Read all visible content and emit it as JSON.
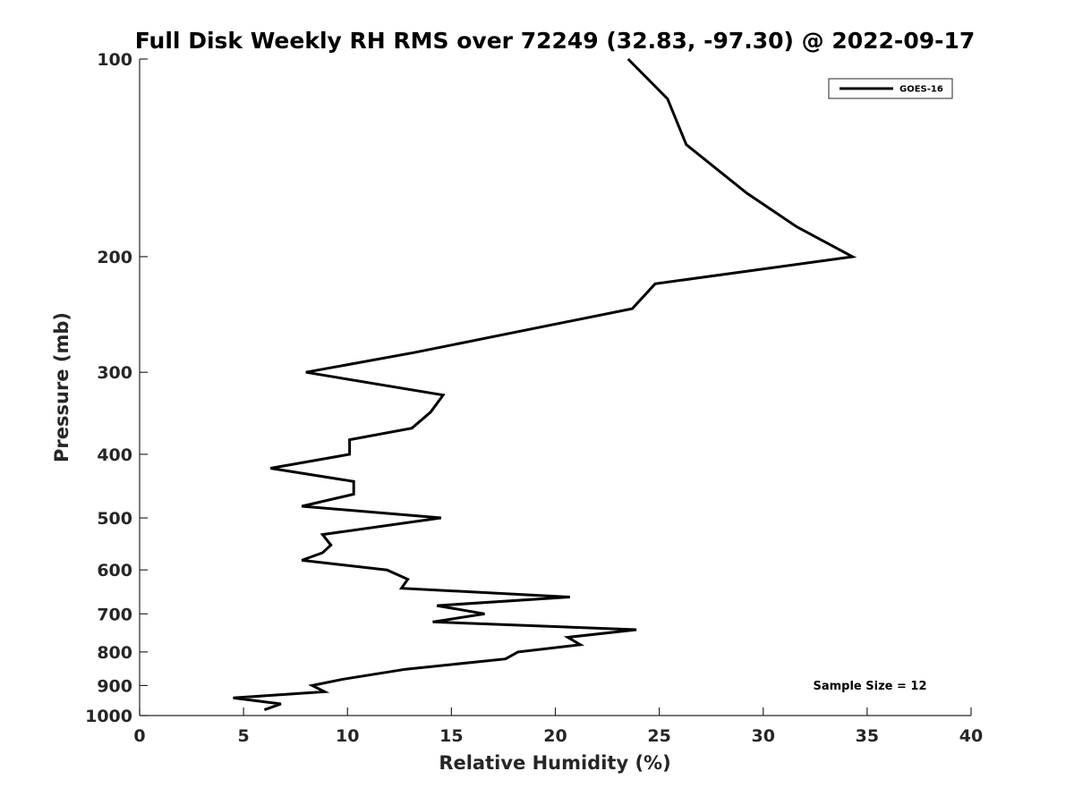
{
  "chart_data": {
    "type": "line",
    "title": "Full Disk Weekly RH RMS over 72249 (32.83, -97.30) @ 2022-09-17",
    "xlabel": "Relative Humidity (%)",
    "ylabel": "Pressure (mb)",
    "xlim": [
      0,
      40
    ],
    "ylim": [
      100,
      1000
    ],
    "yscale": "log",
    "y_reversed": true,
    "xticks": [
      0,
      5,
      10,
      15,
      20,
      25,
      30,
      35,
      40
    ],
    "yticks": [
      100,
      200,
      300,
      400,
      500,
      600,
      700,
      800,
      900,
      1000
    ],
    "grid": false,
    "legend": {
      "placement": "top-right",
      "entries": [
        "GOES-16"
      ]
    },
    "annotation": "Sample Size = 12",
    "series": [
      {
        "name": "GOES-16",
        "color": "#000000",
        "points": [
          [
            23.5,
            100
          ],
          [
            25.4,
            115
          ],
          [
            26.3,
            135
          ],
          [
            29.2,
            160
          ],
          [
            31.6,
            180
          ],
          [
            34.3,
            200
          ],
          [
            24.8,
            220
          ],
          [
            23.7,
            240
          ],
          [
            13.2,
            280
          ],
          [
            8.0,
            300
          ],
          [
            14.6,
            325
          ],
          [
            14.0,
            345
          ],
          [
            13.1,
            365
          ],
          [
            10.1,
            380
          ],
          [
            10.1,
            400
          ],
          [
            6.3,
            420
          ],
          [
            10.3,
            440
          ],
          [
            10.3,
            460
          ],
          [
            7.8,
            480
          ],
          [
            14.5,
            500
          ],
          [
            8.8,
            530
          ],
          [
            9.2,
            550
          ],
          [
            8.8,
            565
          ],
          [
            7.8,
            580
          ],
          [
            11.9,
            600
          ],
          [
            12.9,
            620
          ],
          [
            12.6,
            640
          ],
          [
            20.7,
            660
          ],
          [
            14.3,
            680
          ],
          [
            16.6,
            700
          ],
          [
            14.1,
            720
          ],
          [
            23.9,
            740
          ],
          [
            20.6,
            760
          ],
          [
            21.2,
            780
          ],
          [
            18.2,
            800
          ],
          [
            17.6,
            820
          ],
          [
            12.8,
            850
          ],
          [
            9.8,
            880
          ],
          [
            8.3,
            900
          ],
          [
            8.9,
            920
          ],
          [
            4.5,
            940
          ],
          [
            6.8,
            960
          ],
          [
            6.0,
            980
          ]
        ]
      }
    ]
  }
}
